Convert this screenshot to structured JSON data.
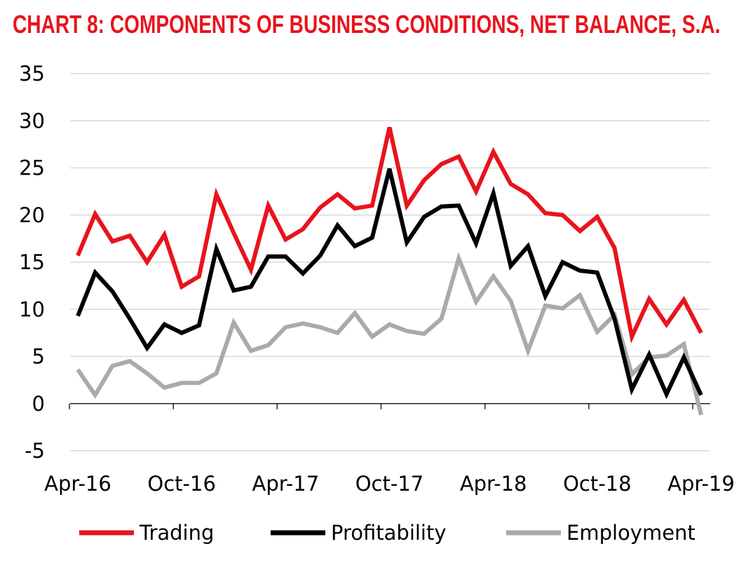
{
  "chart_data": {
    "type": "line",
    "title": "CHART 8: COMPONENTS OF BUSINESS CONDITIONS, NET BALANCE, S.A.",
    "xlabel": "",
    "ylabel": "",
    "ylim": [
      -5,
      35
    ],
    "yticks": [
      -5,
      0,
      5,
      10,
      15,
      20,
      25,
      30,
      35
    ],
    "grid": true,
    "legend_position": "bottom",
    "x_tick_labels": [
      "Apr-16",
      "Oct-16",
      "Apr-17",
      "Oct-17",
      "Apr-18",
      "Oct-18",
      "Apr-19"
    ],
    "x_tick_every": 6,
    "series": [
      {
        "name": "Trading",
        "color": "#e8141c",
        "values": [
          15.7,
          20.1,
          17.2,
          17.8,
          15.0,
          17.9,
          12.4,
          13.5,
          22.2,
          18.1,
          14.2,
          21.0,
          17.4,
          18.5,
          20.8,
          22.2,
          20.7,
          21.0,
          29.3,
          21.0,
          23.7,
          25.4,
          26.2,
          22.5,
          26.7,
          23.3,
          22.2,
          20.2,
          20.0,
          18.3,
          19.8,
          16.5,
          7.1,
          11.1,
          8.4,
          11.0,
          7.5
        ]
      },
      {
        "name": "Profitability",
        "color": "#000000",
        "values": [
          9.3,
          13.9,
          11.9,
          9.0,
          5.9,
          8.4,
          7.5,
          8.3,
          16.4,
          12.0,
          12.4,
          15.6,
          15.6,
          13.8,
          15.7,
          18.9,
          16.7,
          17.6,
          24.9,
          17.1,
          19.8,
          20.9,
          21.0,
          17.0,
          22.3,
          14.6,
          16.7,
          11.4,
          15.0,
          14.1,
          13.9,
          9.0,
          1.5,
          5.2,
          1.0,
          4.9,
          0.9
        ]
      },
      {
        "name": "Employment",
        "color": "#aaaaaa",
        "values": [
          3.6,
          0.9,
          4.0,
          4.5,
          3.2,
          1.7,
          2.2,
          2.2,
          3.2,
          8.6,
          5.6,
          6.2,
          8.1,
          8.5,
          8.1,
          7.5,
          9.6,
          7.1,
          8.4,
          7.7,
          7.4,
          9.0,
          15.4,
          10.8,
          13.5,
          10.9,
          5.6,
          10.4,
          10.1,
          11.5,
          7.6,
          9.4,
          3.1,
          4.9,
          5.1,
          6.3,
          -1.2
        ]
      }
    ]
  }
}
